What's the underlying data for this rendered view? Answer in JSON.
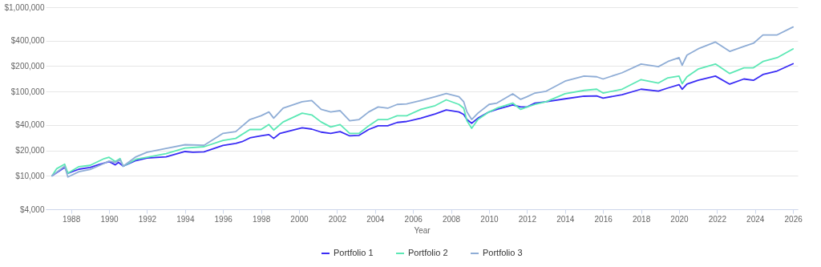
{
  "chart_data": {
    "type": "line",
    "xlabel": "Year",
    "xlim": [
      "1986-09",
      "2026-04"
    ],
    "xticks": [
      {
        "value": "1988",
        "label": "1988"
      },
      {
        "value": "1990",
        "label": "1990"
      },
      {
        "value": "1992",
        "label": "1992"
      },
      {
        "value": "1994",
        "label": "1994"
      },
      {
        "value": "1996",
        "label": "1996"
      },
      {
        "value": "1998",
        "label": "1998"
      },
      {
        "value": "2000",
        "label": "2000"
      },
      {
        "value": "2002",
        "label": "2002"
      },
      {
        "value": "2004",
        "label": "2004"
      },
      {
        "value": "2006",
        "label": "2006"
      },
      {
        "value": "2008",
        "label": "2008"
      },
      {
        "value": "2010",
        "label": "2010"
      },
      {
        "value": "2012",
        "label": "2012"
      },
      {
        "value": "2014",
        "label": "2014"
      },
      {
        "value": "2016",
        "label": "2016"
      },
      {
        "value": "2018",
        "label": "2018"
      },
      {
        "value": "2020",
        "label": "2020"
      },
      {
        "value": "2022",
        "label": "2022"
      },
      {
        "value": "2024",
        "label": "2024"
      },
      {
        "value": "2026",
        "label": "2026"
      }
    ],
    "ylim": [
      4000,
      1000000
    ],
    "log": true,
    "yticks": [
      {
        "value": 4000,
        "label": "$4,000"
      },
      {
        "value": 10000,
        "label": "$10,000"
      },
      {
        "value": 20000,
        "label": "$20,000"
      },
      {
        "value": 40000,
        "label": "$40,000"
      },
      {
        "value": 100000,
        "label": "$100,000"
      },
      {
        "value": 200000,
        "label": "$200,000"
      },
      {
        "value": 400000,
        "label": "$400,000"
      },
      {
        "value": 1000000,
        "label": "$1,000,000"
      }
    ],
    "grid": "y",
    "legend": "bottom",
    "series": [
      {
        "name": "Portfolio 1",
        "color": "#3a2cf5",
        "x": [
          "1987-01",
          "1987-09",
          "1987-11",
          "1988-06",
          "1989-01",
          "1989-06",
          "1990-01",
          "1990-05",
          "1990-07",
          "1990-10",
          "1991-06",
          "1992-01",
          "1993-01",
          "1994-01",
          "1994-06",
          "1995-01",
          "1996-01",
          "1996-09",
          "1997-01",
          "1997-06",
          "1998-01",
          "1998-06",
          "1998-09",
          "1999-01",
          "1999-06",
          "2000-03",
          "2000-09",
          "2001-03",
          "2001-09",
          "2002-03",
          "2002-09",
          "2003-03",
          "2003-09",
          "2004-03",
          "2004-09",
          "2005-03",
          "2005-09",
          "2006-06",
          "2007-03",
          "2007-10",
          "2008-06",
          "2008-09",
          "2008-11",
          "2009-02",
          "2009-06",
          "2010-01",
          "2010-06",
          "2011-04",
          "2011-09",
          "2012-01",
          "2012-06",
          "2013-01",
          "2014-01",
          "2015-01",
          "2015-09",
          "2016-01",
          "2017-01",
          "2018-01",
          "2018-12",
          "2019-06",
          "2020-01",
          "2020-03",
          "2020-06",
          "2021-01",
          "2021-12",
          "2022-09",
          "2023-06",
          "2023-12",
          "2024-06",
          "2025-03",
          "2026-01"
        ],
        "values": [
          10000,
          12560,
          10710,
          11960,
          12560,
          13450,
          14720,
          13450,
          14400,
          12990,
          15130,
          16190,
          16770,
          19380,
          19000,
          19250,
          22850,
          24200,
          25360,
          28140,
          29720,
          30750,
          27730,
          31840,
          33680,
          37060,
          35770,
          32960,
          31840,
          33440,
          29720,
          30150,
          35390,
          39140,
          39140,
          42850,
          44060,
          48200,
          54190,
          60440,
          57200,
          53400,
          46500,
          41950,
          48200,
          57200,
          61300,
          69350,
          65600,
          65600,
          72800,
          75500,
          81800,
          87900,
          88500,
          83500,
          91400,
          106400,
          101200,
          110000,
          120500,
          106400,
          122200,
          135600,
          152300,
          122200,
          140700,
          135600,
          158900,
          175000,
          213400
        ]
      },
      {
        "name": "Portfolio 2",
        "color": "#5ce8b5",
        "x": [
          "1987-01",
          "1987-04",
          "1987-09",
          "1987-11",
          "1988-06",
          "1989-01",
          "1989-06",
          "1989-10",
          "1990-01",
          "1990-05",
          "1990-08",
          "1990-10",
          "1991-06",
          "1992-01",
          "1993-01",
          "1994-01",
          "1995-01",
          "1996-01",
          "1996-09",
          "1997-06",
          "1998-01",
          "1998-06",
          "1998-09",
          "1999-03",
          "2000-03",
          "2000-09",
          "2001-03",
          "2001-09",
          "2002-03",
          "2002-09",
          "2003-03",
          "2003-09",
          "2004-03",
          "2004-09",
          "2005-03",
          "2005-09",
          "2006-06",
          "2007-03",
          "2007-10",
          "2008-06",
          "2008-09",
          "2008-11",
          "2009-02",
          "2009-06",
          "2010-01",
          "2010-06",
          "2011-04",
          "2011-09",
          "2012-01",
          "2012-06",
          "2013-01",
          "2014-01",
          "2015-01",
          "2015-09",
          "2016-01",
          "2017-01",
          "2018-01",
          "2018-12",
          "2019-06",
          "2020-01",
          "2020-03",
          "2020-06",
          "2021-01",
          "2021-12",
          "2022-09",
          "2023-06",
          "2023-12",
          "2024-06",
          "2025-03",
          "2026-01"
        ],
        "values": [
          10000,
          12130,
          13730,
          10710,
          12820,
          13270,
          14720,
          15980,
          16550,
          14720,
          15980,
          12990,
          15650,
          16550,
          18330,
          21340,
          22100,
          26240,
          27730,
          35390,
          35390,
          40530,
          34850,
          43460,
          55310,
          52720,
          43460,
          37870,
          40530,
          31840,
          31840,
          39140,
          46500,
          46500,
          51560,
          51560,
          61300,
          67900,
          79600,
          70200,
          63300,
          44950,
          36560,
          46500,
          57200,
          63300,
          72800,
          61300,
          65600,
          70200,
          75500,
          94000,
          103000,
          106400,
          95800,
          106400,
          138400,
          126000,
          145200,
          152300,
          123700,
          149500,
          184500,
          211800,
          163400,
          191000,
          191000,
          227000,
          251800,
          320600
        ]
      },
      {
        "name": "Portfolio 3",
        "color": "#8fadd6",
        "x": [
          "1987-01",
          "1987-09",
          "1987-11",
          "1988-06",
          "1989-01",
          "1989-06",
          "1990-01",
          "1990-05",
          "1990-08",
          "1990-10",
          "1991-06",
          "1992-01",
          "1993-01",
          "1994-01",
          "1995-01",
          "1996-01",
          "1996-09",
          "1997-06",
          "1998-01",
          "1998-06",
          "1998-09",
          "1999-03",
          "2000-03",
          "2000-09",
          "2001-03",
          "2001-09",
          "2002-03",
          "2002-09",
          "2003-03",
          "2003-09",
          "2004-03",
          "2004-09",
          "2005-03",
          "2005-09",
          "2006-06",
          "2007-03",
          "2007-10",
          "2008-06",
          "2008-09",
          "2008-11",
          "2009-02",
          "2009-06",
          "2010-01",
          "2010-06",
          "2011-04",
          "2011-09",
          "2012-01",
          "2012-06",
          "2013-01",
          "2014-01",
          "2015-01",
          "2015-09",
          "2016-01",
          "2017-01",
          "2018-01",
          "2018-12",
          "2019-06",
          "2020-01",
          "2020-03",
          "2020-06",
          "2021-01",
          "2021-12",
          "2022-09",
          "2023-06",
          "2023-12",
          "2024-06",
          "2025-03",
          "2026-01"
        ],
        "values": [
          10000,
          12990,
          9660,
          11160,
          11880,
          12990,
          14920,
          14400,
          15440,
          12990,
          16770,
          19000,
          21040,
          23340,
          23000,
          31840,
          33440,
          46500,
          51560,
          57200,
          48200,
          63300,
          75500,
          78200,
          61300,
          57200,
          59200,
          44950,
          46500,
          57200,
          65600,
          63300,
          70200,
          71200,
          78200,
          86600,
          94700,
          86600,
          75500,
          57200,
          46500,
          55300,
          70200,
          72800,
          94000,
          80600,
          86600,
          95800,
          100700,
          132600,
          152300,
          149500,
          140700,
          166700,
          211800,
          197000,
          227000,
          251800,
          204700,
          270000,
          320600,
          386500,
          299000,
          343400,
          373400,
          469000,
          469000,
          583600
        ]
      }
    ]
  }
}
